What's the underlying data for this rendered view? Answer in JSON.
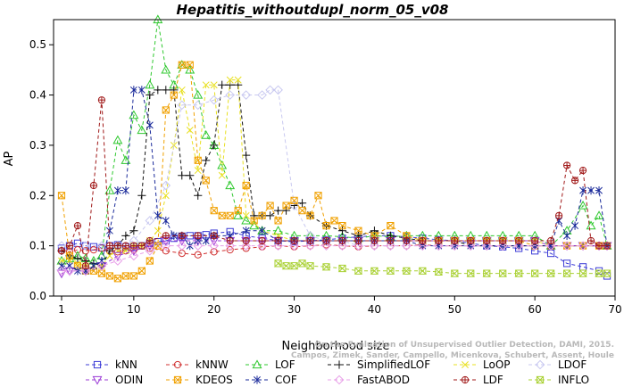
{
  "chart_data": {
    "type": "line",
    "title": "Hepatitis_withoutdupl_norm_05_v08",
    "xlabel": "Neighborhood size",
    "ylabel": "AP",
    "xlim": [
      0,
      70
    ],
    "ylim": [
      0,
      0.55
    ],
    "xticks": [
      1,
      10,
      20,
      30,
      40,
      50,
      60,
      70
    ],
    "yticks": [
      0.0,
      0.1,
      0.2,
      0.3,
      0.4,
      0.5
    ],
    "grid": false,
    "legend_position": "bottom",
    "watermark": "Campos, Zimek, Sander, Campello, Micenkova, Schubert, Assent, Houle\nOn the Evaluation of Unsupervised Outlier Detection, DAMI, 2015.",
    "series": [
      {
        "name": "kNN",
        "color": "#3b3bd6",
        "marker": "square",
        "x": [
          1,
          2,
          3,
          4,
          5,
          6,
          7,
          8,
          9,
          10,
          11,
          12,
          13,
          14,
          15,
          16,
          17,
          18,
          19,
          20,
          22,
          24,
          26,
          28,
          30,
          32,
          34,
          36,
          38,
          40,
          42,
          44,
          46,
          48,
          50,
          52,
          54,
          56,
          58,
          60,
          62,
          64,
          66,
          68,
          69
        ],
        "y": [
          0.095,
          0.1,
          0.105,
          0.1,
          0.098,
          0.096,
          0.1,
          0.102,
          0.098,
          0.098,
          0.1,
          0.105,
          0.108,
          0.11,
          0.115,
          0.118,
          0.12,
          0.12,
          0.122,
          0.125,
          0.128,
          0.12,
          0.115,
          0.11,
          0.108,
          0.11,
          0.112,
          0.115,
          0.118,
          0.12,
          0.12,
          0.118,
          0.115,
          0.112,
          0.11,
          0.105,
          0.1,
          0.098,
          0.095,
          0.09,
          0.085,
          0.065,
          0.058,
          0.05,
          0.04
        ]
      },
      {
        "name": "kNNW",
        "color": "#d03030",
        "marker": "circle",
        "x": [
          1,
          2,
          3,
          4,
          5,
          6,
          7,
          8,
          9,
          10,
          12,
          14,
          16,
          18,
          20,
          22,
          24,
          26,
          28,
          30,
          32,
          34,
          36,
          38,
          40,
          42,
          44,
          46,
          48,
          50,
          52,
          54,
          56,
          58,
          60,
          62,
          64,
          66,
          68,
          69
        ],
        "y": [
          0.09,
          0.088,
          0.092,
          0.09,
          0.092,
          0.095,
          0.09,
          0.088,
          0.09,
          0.092,
          0.095,
          0.09,
          0.085,
          0.082,
          0.088,
          0.092,
          0.095,
          0.098,
          0.1,
          0.098,
          0.1,
          0.102,
          0.1,
          0.098,
          0.1,
          0.1,
          0.1,
          0.102,
          0.1,
          0.1,
          0.1,
          0.1,
          0.1,
          0.1,
          0.1,
          0.1,
          0.1,
          0.1,
          0.1,
          0.1
        ]
      },
      {
        "name": "LOF",
        "color": "#2ec82e",
        "marker": "triangle",
        "x": [
          1,
          2,
          3,
          4,
          5,
          6,
          7,
          8,
          9,
          10,
          11,
          12,
          13,
          14,
          15,
          16,
          17,
          18,
          19,
          20,
          21,
          22,
          23,
          24,
          25,
          26,
          28,
          30,
          32,
          34,
          36,
          38,
          40,
          42,
          44,
          46,
          48,
          50,
          52,
          54,
          56,
          58,
          60,
          62,
          64,
          66,
          67,
          68,
          69
        ],
        "y": [
          0.07,
          0.075,
          0.08,
          0.075,
          0.07,
          0.08,
          0.21,
          0.31,
          0.27,
          0.36,
          0.33,
          0.42,
          0.55,
          0.45,
          0.42,
          0.46,
          0.45,
          0.4,
          0.32,
          0.3,
          0.26,
          0.22,
          0.16,
          0.15,
          0.14,
          0.13,
          0.13,
          0.12,
          0.12,
          0.12,
          0.118,
          0.115,
          0.12,
          0.118,
          0.12,
          0.12,
          0.12,
          0.12,
          0.12,
          0.12,
          0.12,
          0.12,
          0.12,
          0.1,
          0.13,
          0.18,
          0.14,
          0.16,
          0.1
        ]
      },
      {
        "name": "SimplifiedLOF",
        "color": "#111111",
        "marker": "plus",
        "x": [
          1,
          2,
          3,
          4,
          5,
          6,
          7,
          8,
          9,
          10,
          11,
          12,
          13,
          14,
          15,
          16,
          17,
          18,
          19,
          20,
          21,
          22,
          23,
          24,
          25,
          26,
          27,
          28,
          29,
          30,
          31,
          32,
          34,
          36,
          38,
          40,
          42,
          44,
          46,
          48,
          50,
          52,
          54,
          56,
          58,
          60,
          62,
          64,
          66,
          68,
          69
        ],
        "y": [
          0.09,
          0.08,
          0.075,
          0.07,
          0.065,
          0.06,
          0.09,
          0.1,
          0.12,
          0.13,
          0.2,
          0.4,
          0.41,
          0.41,
          0.41,
          0.24,
          0.24,
          0.2,
          0.27,
          0.3,
          0.42,
          0.42,
          0.42,
          0.28,
          0.16,
          0.16,
          0.16,
          0.17,
          0.17,
          0.18,
          0.185,
          0.16,
          0.14,
          0.13,
          0.12,
          0.13,
          0.12,
          0.115,
          0.11,
          0.11,
          0.11,
          0.1,
          0.1,
          0.1,
          0.1,
          0.1,
          0.1,
          0.1,
          0.1,
          0.1,
          0.1
        ]
      },
      {
        "name": "LoOP",
        "color": "#e8e020",
        "marker": "cross",
        "x": [
          1,
          2,
          3,
          4,
          5,
          6,
          7,
          8,
          9,
          10,
          11,
          12,
          13,
          14,
          15,
          16,
          17,
          18,
          19,
          20,
          21,
          22,
          23,
          24,
          26,
          28,
          30,
          32,
          34,
          36,
          38,
          40,
          42,
          44,
          46,
          48,
          50,
          52,
          54,
          56,
          58,
          60,
          62,
          64,
          66,
          68,
          69
        ],
        "y": [
          0.07,
          0.07,
          0.065,
          0.06,
          0.06,
          0.06,
          0.08,
          0.09,
          0.09,
          0.1,
          0.1,
          0.11,
          0.13,
          0.2,
          0.3,
          0.41,
          0.33,
          0.25,
          0.42,
          0.42,
          0.24,
          0.43,
          0.43,
          0.16,
          0.13,
          0.12,
          0.11,
          0.11,
          0.11,
          0.11,
          0.11,
          0.11,
          0.11,
          0.11,
          0.11,
          0.11,
          0.11,
          0.11,
          0.11,
          0.11,
          0.11,
          0.11,
          0.1,
          0.1,
          0.1,
          0.1,
          0.1
        ]
      },
      {
        "name": "LDOF",
        "color": "#c8c8f0",
        "marker": "diamond",
        "x": [
          1,
          2,
          4,
          6,
          8,
          10,
          12,
          14,
          16,
          18,
          20,
          22,
          24,
          26,
          27,
          28,
          30,
          32,
          34,
          36,
          38,
          40,
          42,
          44,
          46,
          48,
          50,
          52,
          54,
          56,
          58,
          60,
          62,
          64,
          66,
          68,
          69
        ],
        "y": [
          0.1,
          0.1,
          0.1,
          0.1,
          0.1,
          0.11,
          0.15,
          0.22,
          0.38,
          0.38,
          0.39,
          0.4,
          0.4,
          0.4,
          0.41,
          0.41,
          0.18,
          0.12,
          0.11,
          0.11,
          0.1,
          0.1,
          0.1,
          0.1,
          0.1,
          0.1,
          0.1,
          0.1,
          0.1,
          0.1,
          0.1,
          0.1,
          0.1,
          0.1,
          0.1,
          0.1,
          0.1
        ]
      },
      {
        "name": "ODIN",
        "color": "#9b3bd6",
        "marker": "triangle-down",
        "x": [
          1,
          2,
          4,
          6,
          8,
          10,
          12,
          14,
          16,
          18,
          20,
          22,
          24,
          26,
          28,
          30,
          32,
          34,
          36,
          38,
          40,
          42,
          44,
          46,
          48,
          50,
          52,
          54,
          56,
          58,
          60,
          62,
          64,
          66,
          68,
          69
        ],
        "y": [
          0.045,
          0.05,
          0.05,
          0.06,
          0.08,
          0.09,
          0.1,
          0.11,
          0.11,
          0.11,
          0.11,
          0.11,
          0.11,
          0.11,
          0.11,
          0.11,
          0.11,
          0.11,
          0.11,
          0.11,
          0.11,
          0.11,
          0.11,
          0.11,
          0.11,
          0.11,
          0.11,
          0.11,
          0.11,
          0.11,
          0.11,
          0.1,
          0.1,
          0.1,
          0.1,
          0.1
        ]
      },
      {
        "name": "KDEOS",
        "color": "#f0a000",
        "marker": "box-x",
        "x": [
          1,
          2,
          3,
          4,
          5,
          6,
          7,
          8,
          9,
          10,
          11,
          12,
          13,
          14,
          15,
          16,
          17,
          18,
          19,
          20,
          21,
          22,
          23,
          24,
          25,
          26,
          27,
          28,
          29,
          30,
          31,
          32,
          33,
          34,
          35,
          36,
          38,
          40,
          42,
          44,
          46,
          48,
          50,
          52,
          54,
          56,
          58,
          60,
          62,
          64,
          66,
          68,
          69
        ],
        "y": [
          0.2,
          0.08,
          0.06,
          0.05,
          0.05,
          0.045,
          0.04,
          0.035,
          0.04,
          0.04,
          0.05,
          0.07,
          0.1,
          0.37,
          0.4,
          0.46,
          0.46,
          0.27,
          0.23,
          0.17,
          0.16,
          0.16,
          0.17,
          0.22,
          0.15,
          0.16,
          0.18,
          0.15,
          0.18,
          0.19,
          0.17,
          0.16,
          0.2,
          0.14,
          0.15,
          0.14,
          0.13,
          0.12,
          0.14,
          0.12,
          0.11,
          0.11,
          0.11,
          0.11,
          0.11,
          0.11,
          0.11,
          0.1,
          0.1,
          0.1,
          0.1,
          0.1,
          0.1
        ]
      },
      {
        "name": "COF",
        "color": "#1a2a9a",
        "marker": "asterisk",
        "x": [
          1,
          2,
          3,
          4,
          5,
          6,
          7,
          8,
          9,
          10,
          11,
          12,
          13,
          14,
          15,
          16,
          17,
          18,
          19,
          20,
          22,
          24,
          26,
          28,
          30,
          32,
          34,
          36,
          38,
          40,
          42,
          44,
          46,
          48,
          50,
          52,
          54,
          56,
          58,
          60,
          62,
          63,
          64,
          65,
          66,
          67,
          68,
          69
        ],
        "y": [
          0.06,
          0.06,
          0.05,
          0.05,
          0.06,
          0.07,
          0.13,
          0.21,
          0.21,
          0.41,
          0.41,
          0.34,
          0.16,
          0.15,
          0.12,
          0.12,
          0.1,
          0.11,
          0.11,
          0.12,
          0.12,
          0.13,
          0.13,
          0.11,
          0.11,
          0.11,
          0.11,
          0.11,
          0.11,
          0.11,
          0.11,
          0.11,
          0.1,
          0.1,
          0.1,
          0.1,
          0.1,
          0.1,
          0.1,
          0.1,
          0.1,
          0.15,
          0.12,
          0.14,
          0.21,
          0.21,
          0.21,
          0.1
        ]
      },
      {
        "name": "FastABOD",
        "color": "#e8a0e8",
        "marker": "diamond",
        "x": [
          1,
          2,
          4,
          6,
          8,
          10,
          12,
          14,
          16,
          18,
          20,
          22,
          24,
          26,
          28,
          30,
          32,
          34,
          36,
          38,
          40,
          42,
          44,
          46,
          48,
          50,
          52,
          54,
          56,
          58,
          60,
          62,
          64,
          66,
          68,
          69
        ],
        "y": [
          0.05,
          0.05,
          0.05,
          0.06,
          0.07,
          0.08,
          0.09,
          0.1,
          0.1,
          0.1,
          0.1,
          0.1,
          0.1,
          0.1,
          0.1,
          0.1,
          0.1,
          0.1,
          0.1,
          0.1,
          0.1,
          0.1,
          0.1,
          0.1,
          0.1,
          0.1,
          0.1,
          0.1,
          0.1,
          0.1,
          0.1,
          0.1,
          0.1,
          0.1,
          0.1,
          0.1
        ]
      },
      {
        "name": "LDF",
        "color": "#a01818",
        "marker": "circle-plus",
        "x": [
          1,
          2,
          3,
          4,
          5,
          6,
          7,
          8,
          9,
          10,
          11,
          12,
          14,
          16,
          18,
          20,
          22,
          24,
          26,
          28,
          30,
          32,
          34,
          36,
          38,
          40,
          42,
          44,
          46,
          48,
          50,
          52,
          54,
          56,
          58,
          60,
          62,
          63,
          64,
          65,
          66,
          67,
          68,
          69
        ],
        "y": [
          0.09,
          0.1,
          0.14,
          0.06,
          0.22,
          0.39,
          0.1,
          0.1,
          0.1,
          0.1,
          0.1,
          0.11,
          0.12,
          0.12,
          0.12,
          0.12,
          0.11,
          0.11,
          0.11,
          0.11,
          0.11,
          0.11,
          0.11,
          0.11,
          0.11,
          0.11,
          0.11,
          0.11,
          0.11,
          0.11,
          0.11,
          0.11,
          0.11,
          0.11,
          0.11,
          0.11,
          0.11,
          0.16,
          0.26,
          0.23,
          0.25,
          0.11,
          0.1,
          0.1
        ]
      },
      {
        "name": "INFLO",
        "color": "#a8d030",
        "marker": "hourglass",
        "x": [
          28,
          29,
          30,
          31,
          32,
          34,
          36,
          38,
          40,
          42,
          44,
          46,
          48,
          50,
          52,
          54,
          56,
          58,
          60,
          62,
          64,
          66,
          68,
          69
        ],
        "y": [
          0.065,
          0.06,
          0.06,
          0.065,
          0.06,
          0.058,
          0.055,
          0.05,
          0.05,
          0.05,
          0.05,
          0.05,
          0.048,
          0.045,
          0.045,
          0.045,
          0.045,
          0.045,
          0.045,
          0.045,
          0.045,
          0.045,
          0.045,
          0.045
        ]
      }
    ]
  }
}
